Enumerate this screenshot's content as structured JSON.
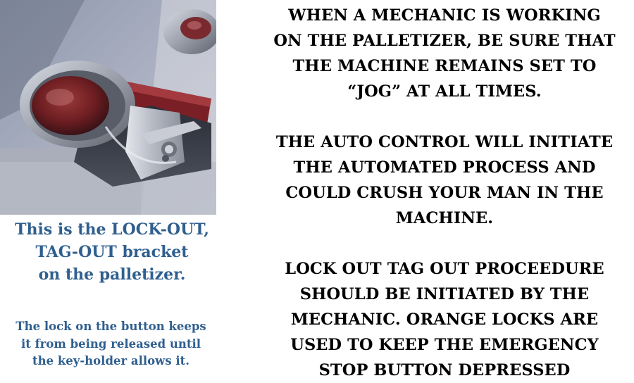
{
  "caption": {
    "heading": "This is the LOCK-OUT,\nTAG-OUT bracket\non the palletizer.",
    "detail": "The lock on the button keeps\nit from being released until\nthe key-holder allows it."
  },
  "notices": [
    "WHEN A MECHANIC IS WORKING\nON THE PALLETIZER, BE SURE THAT\nTHE MACHINE REMAINS SET TO\n“JOG” AT ALL TIMES.",
    "THE AUTO CONTROL WILL INITIATE\nTHE AUTOMATED PROCESS AND\nCOULD CRUSH YOUR MAN IN THE\nMACHINE.",
    "LOCK OUT TAG OUT PROCEEDURE\nSHOULD BE INITIATED BY THE\nMECHANIC. ORANGE LOCKS ARE\nUSED TO KEEP THE EMERGENCY\nSTOP BUTTON DEPRESSED"
  ]
}
